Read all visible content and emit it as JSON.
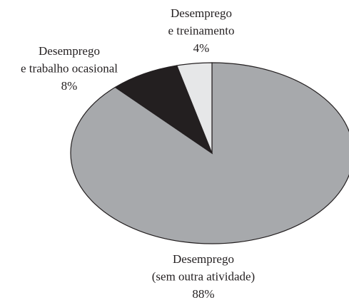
{
  "chart_data": {
    "type": "pie",
    "categories": [
      [
        "Desemprego",
        "(sem outra atividade)"
      ],
      [
        "Desemprego",
        "e trabalho ocasional"
      ],
      [
        "Desemprego",
        "e treinamento"
      ]
    ],
    "values": [
      88,
      8,
      4
    ],
    "value_labels": [
      "88%",
      "8%",
      "4%"
    ],
    "colors": [
      "#a7a9ac",
      "#231f20",
      "#e6e7e8"
    ]
  }
}
